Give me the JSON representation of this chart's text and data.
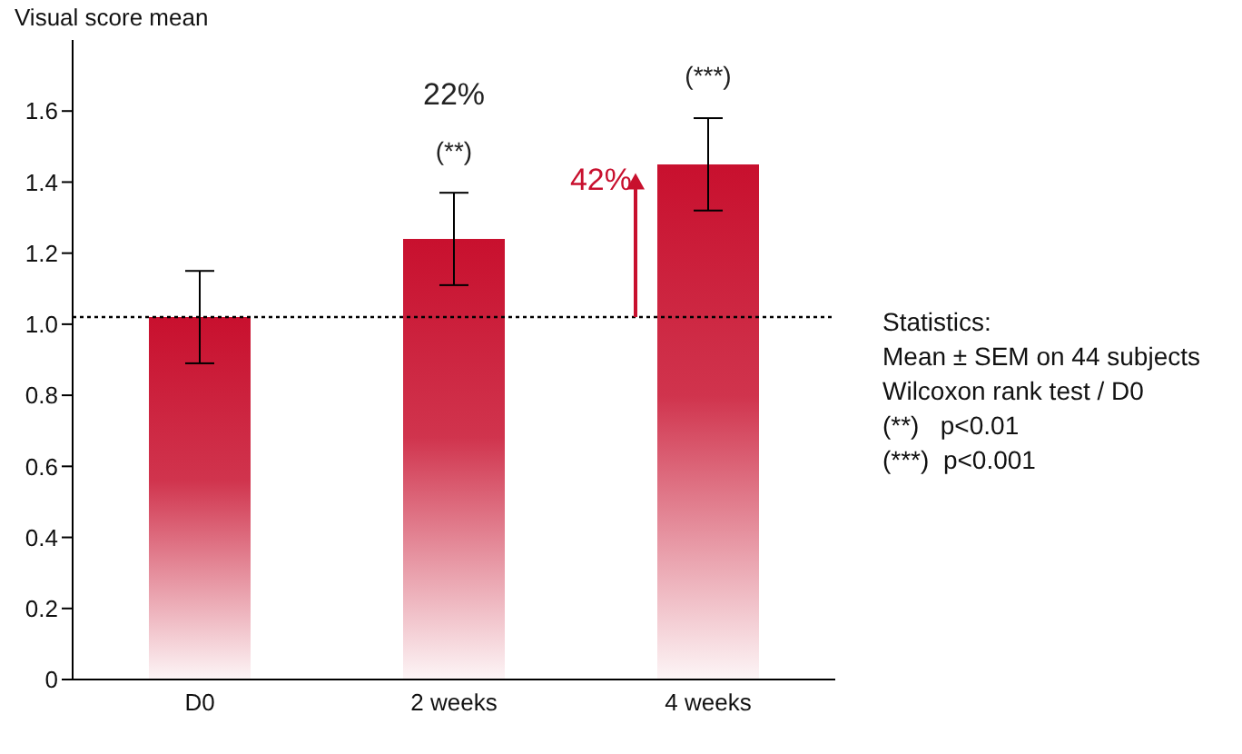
{
  "chart_data": {
    "type": "bar",
    "ylabel": "Visual score mean",
    "categories": [
      "D0",
      "2 weeks",
      "4 weeks"
    ],
    "values": [
      1.02,
      1.24,
      1.45
    ],
    "errors": [
      0.13,
      0.13,
      0.13
    ],
    "color": "#c8102e",
    "ylim": [
      0,
      1.8
    ],
    "yticks": [
      0,
      0.2,
      0.4,
      0.6,
      0.8,
      {
        "value": 1,
        "label": "1.0"
      },
      1.2,
      1.4,
      1.6
    ],
    "ref_lines": [
      {
        "axis": "y",
        "value": 1.02,
        "line_style": "dotted",
        "color": "#000000"
      }
    ],
    "annotations": [
      "22%",
      {
        "text": "(**)",
        "x": "2 weeks",
        "y": 1.24
      },
      {
        "text": "(***)",
        "x": "4 weeks",
        "y": 1.45
      },
      {
        "text": "42%",
        "x": "4 weeks",
        "y": 1.4
      },
      "Statistics:",
      "Mean ± SEM on 44 subjects",
      "Wilcoxon rank test / D0",
      "(**)   p<0.01",
      "(***)  p<0.001"
    ]
  }
}
